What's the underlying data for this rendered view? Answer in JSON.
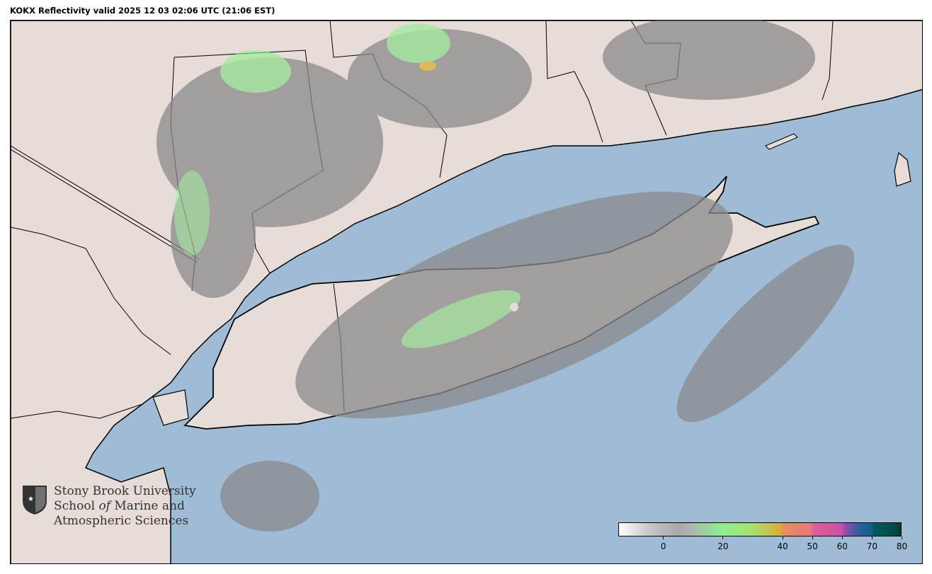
{
  "title": "KOKX Reflectivity valid 2025 12 03 02:06 UTC (21:06 EST)",
  "logo": {
    "line1": "Stony Brook University",
    "line2a": "School ",
    "line2b": "of",
    "line2c": " Marine and",
    "line3": "Atmospheric Sciences"
  },
  "colors": {
    "water": "#9fbcd6",
    "land": "#e6dcd8",
    "echo_gray": "#8a8a8a",
    "echo_green": "#8ef08e"
  },
  "colorbar": {
    "range": [
      -15,
      80
    ],
    "ticks": [
      {
        "value": 0,
        "label": "0"
      },
      {
        "value": 20,
        "label": "20"
      },
      {
        "value": 40,
        "label": "40"
      },
      {
        "value": 50,
        "label": "50"
      },
      {
        "value": 60,
        "label": "60"
      },
      {
        "value": 70,
        "label": "70"
      },
      {
        "value": 80,
        "label": "80"
      }
    ],
    "stops": [
      {
        "v": -15,
        "c": "#ffffff"
      },
      {
        "v": -5,
        "c": "#c8c8c8"
      },
      {
        "v": 5,
        "c": "#a8a8a8"
      },
      {
        "v": 8,
        "c": "#b0b0b0"
      },
      {
        "v": 20,
        "c": "#8ef08e"
      },
      {
        "v": 30,
        "c": "#a8e070"
      },
      {
        "v": 40,
        "c": "#dcaa30"
      },
      {
        "v": 40.1,
        "c": "#e88e5e"
      },
      {
        "v": 50,
        "c": "#e47a7a"
      },
      {
        "v": 50.1,
        "c": "#e06098"
      },
      {
        "v": 60,
        "c": "#c850a8"
      },
      {
        "v": 61,
        "c": "#9c4cb0"
      },
      {
        "v": 65,
        "c": "#3a5ea0"
      },
      {
        "v": 70,
        "c": "#0e5e90"
      },
      {
        "v": 71,
        "c": "#005a5a"
      },
      {
        "v": 78,
        "c": "#004a4a"
      },
      {
        "v": 80,
        "c": "#003a2a"
      }
    ]
  }
}
